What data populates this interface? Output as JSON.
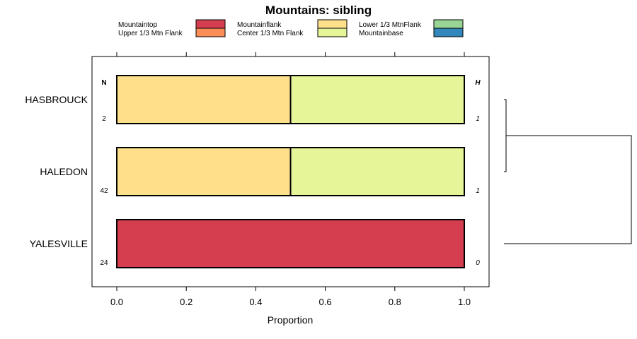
{
  "chart_data": {
    "type": "bar",
    "orientation": "horizontal",
    "stacked": true,
    "title": "Mountains: sibling",
    "xlabel": "Proportion",
    "ylabel": "",
    "xlim": [
      0,
      1
    ],
    "x_ticks": [
      "0.0",
      "0.2",
      "0.4",
      "0.6",
      "0.8",
      "1.0"
    ],
    "categories": [
      "HASBROUCK",
      "HALEDON",
      "YALESVILLE"
    ],
    "n_header": "N",
    "h_header": "H",
    "n_values": [
      "2",
      "42",
      "24"
    ],
    "h_values": [
      "1",
      "1",
      "0"
    ],
    "series": [
      {
        "name": "Mountaintop",
        "color": "#d53e4f",
        "values": [
          0,
          0,
          1.0
        ]
      },
      {
        "name": "Upper 1/3 Mtn Flank",
        "color": "#fc8d59",
        "values": [
          0,
          0,
          0
        ]
      },
      {
        "name": "Mountainflank",
        "color": "#fee08b",
        "values": [
          0.5,
          0.5,
          0
        ]
      },
      {
        "name": "Center 1/3 Mtn Flank",
        "color": "#e6f598",
        "values": [
          0.5,
          0.5,
          0
        ]
      },
      {
        "name": "Lower 1/3 MtnFlank",
        "color": "#99d594",
        "values": [
          0,
          0,
          0
        ]
      },
      {
        "name": "Mountainbase",
        "color": "#3288bd",
        "values": [
          0,
          0,
          0
        ]
      }
    ],
    "legend_position": "top",
    "dendrogram": {
      "merges": [
        [
          "HASBROUCK",
          "HALEDON"
        ],
        [
          "HASBROUCK+HALEDON",
          "YALESVILLE"
        ]
      ]
    }
  }
}
